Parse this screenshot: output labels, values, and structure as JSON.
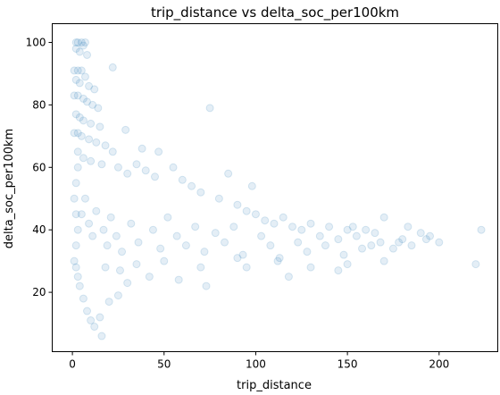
{
  "chart_data": {
    "type": "scatter",
    "title": "trip_distance vs delta_soc_per100km",
    "xlabel": "trip_distance",
    "ylabel": "delta_soc_per100km",
    "xlim": [
      -11,
      232
    ],
    "ylim": [
      1,
      106
    ],
    "xticks": [
      0,
      50,
      100,
      150,
      200
    ],
    "yticks": [
      20,
      40,
      60,
      80,
      100
    ],
    "grid": false,
    "color": "#1f77b4",
    "marker_alpha": 0.12,
    "series": [
      {
        "points": [
          [
            2,
            100
          ],
          [
            3,
            100
          ],
          [
            5,
            100
          ],
          [
            7,
            100
          ],
          [
            2,
            98
          ],
          [
            4,
            97
          ],
          [
            6,
            99
          ],
          [
            8,
            96
          ],
          [
            1,
            91
          ],
          [
            3,
            91
          ],
          [
            5,
            91
          ],
          [
            2,
            88
          ],
          [
            4,
            87
          ],
          [
            7,
            89
          ],
          [
            9,
            86
          ],
          [
            12,
            85
          ],
          [
            1,
            83
          ],
          [
            3,
            83
          ],
          [
            6,
            82
          ],
          [
            8,
            81
          ],
          [
            11,
            80
          ],
          [
            14,
            79
          ],
          [
            2,
            77
          ],
          [
            4,
            76
          ],
          [
            6,
            75
          ],
          [
            10,
            74
          ],
          [
            15,
            73
          ],
          [
            1,
            71
          ],
          [
            3,
            71
          ],
          [
            5,
            70
          ],
          [
            9,
            69
          ],
          [
            13,
            68
          ],
          [
            18,
            67
          ],
          [
            22,
            65
          ],
          [
            3,
            65
          ],
          [
            6,
            63
          ],
          [
            10,
            62
          ],
          [
            16,
            61
          ],
          [
            25,
            60
          ],
          [
            30,
            58
          ],
          [
            35,
            61
          ],
          [
            40,
            59
          ],
          [
            45,
            57
          ],
          [
            38,
            66
          ],
          [
            29,
            72
          ],
          [
            75,
            79
          ],
          [
            22,
            92
          ],
          [
            47,
            65
          ],
          [
            55,
            60
          ],
          [
            60,
            56
          ],
          [
            65,
            54
          ],
          [
            70,
            52
          ],
          [
            80,
            50
          ],
          [
            85,
            58
          ],
          [
            98,
            54
          ],
          [
            90,
            48
          ],
          [
            95,
            46
          ],
          [
            100,
            45
          ],
          [
            105,
            43
          ],
          [
            110,
            42
          ],
          [
            115,
            44
          ],
          [
            120,
            41
          ],
          [
            125,
            40
          ],
          [
            130,
            42
          ],
          [
            135,
            38
          ],
          [
            140,
            41
          ],
          [
            145,
            37
          ],
          [
            150,
            40
          ],
          [
            155,
            38
          ],
          [
            160,
            40
          ],
          [
            165,
            39
          ],
          [
            170,
            44
          ],
          [
            175,
            34
          ],
          [
            180,
            37
          ],
          [
            185,
            35
          ],
          [
            190,
            39
          ],
          [
            193,
            37
          ],
          [
            200,
            36
          ],
          [
            220,
            29
          ],
          [
            223,
            40
          ],
          [
            170,
            30
          ],
          [
            145,
            27
          ],
          [
            118,
            25
          ],
          [
            95,
            28
          ],
          [
            73,
            22
          ],
          [
            58,
            24
          ],
          [
            42,
            25
          ],
          [
            30,
            23
          ],
          [
            25,
            19
          ],
          [
            20,
            17
          ],
          [
            15,
            12
          ],
          [
            12,
            9
          ],
          [
            16,
            6
          ],
          [
            10,
            11
          ],
          [
            8,
            14
          ],
          [
            6,
            18
          ],
          [
            4,
            22
          ],
          [
            3,
            25
          ],
          [
            2,
            28
          ],
          [
            1,
            30
          ],
          [
            2,
            35
          ],
          [
            3,
            40
          ],
          [
            2,
            45
          ],
          [
            1,
            50
          ],
          [
            2,
            55
          ],
          [
            3,
            60
          ],
          [
            5,
            45
          ],
          [
            7,
            50
          ],
          [
            9,
            42
          ],
          [
            11,
            38
          ],
          [
            13,
            46
          ],
          [
            17,
            40
          ],
          [
            19,
            35
          ],
          [
            21,
            44
          ],
          [
            24,
            38
          ],
          [
            27,
            33
          ],
          [
            32,
            42
          ],
          [
            36,
            36
          ],
          [
            44,
            40
          ],
          [
            48,
            34
          ],
          [
            52,
            44
          ],
          [
            57,
            38
          ],
          [
            62,
            35
          ],
          [
            67,
            41
          ],
          [
            72,
            33
          ],
          [
            78,
            39
          ],
          [
            83,
            36
          ],
          [
            88,
            41
          ],
          [
            93,
            32
          ],
          [
            103,
            38
          ],
          [
            108,
            35
          ],
          [
            113,
            31
          ],
          [
            123,
            36
          ],
          [
            128,
            33
          ],
          [
            138,
            35
          ],
          [
            148,
            32
          ],
          [
            153,
            41
          ],
          [
            158,
            34
          ],
          [
            163,
            35
          ],
          [
            168,
            36
          ],
          [
            178,
            36
          ],
          [
            183,
            41
          ],
          [
            195,
            38
          ],
          [
            150,
            29
          ],
          [
            130,
            28
          ],
          [
            112,
            30
          ],
          [
            90,
            31
          ],
          [
            70,
            28
          ],
          [
            50,
            30
          ],
          [
            35,
            29
          ],
          [
            26,
            27
          ],
          [
            18,
            28
          ]
        ]
      }
    ]
  }
}
